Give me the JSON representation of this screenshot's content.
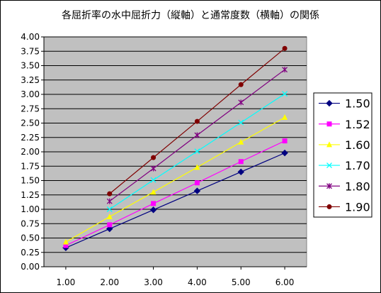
{
  "chart_data": {
    "type": "line",
    "title": "各屈折率の水中屈折力（縦軸）と通常度数（横軸）の関係",
    "xlabel": "",
    "ylabel": "",
    "xlim": [
      1.0,
      6.0
    ],
    "ylim": [
      0.0,
      4.0
    ],
    "x_ticks": [
      "1.00",
      "2.00",
      "3.00",
      "4.00",
      "5.00",
      "6.00"
    ],
    "y_ticks": [
      "0.00",
      "0.25",
      "0.50",
      "0.75",
      "1.00",
      "1.25",
      "1.50",
      "1.75",
      "2.00",
      "2.25",
      "2.50",
      "2.75",
      "3.00",
      "3.25",
      "3.50",
      "3.75",
      "4.00"
    ],
    "grid": true,
    "plot_background": "#c0c0c0",
    "legend_position": "right",
    "series": [
      {
        "name": "1.50",
        "color": "#000080",
        "marker": "diamond",
        "x": [
          1,
          2,
          3,
          4,
          5,
          6
        ],
        "values": [
          0.33,
          0.66,
          0.99,
          1.32,
          1.65,
          1.98
        ]
      },
      {
        "name": "1.52",
        "color": "#ff00ff",
        "marker": "square",
        "x": [
          1,
          2,
          3,
          4,
          5,
          6
        ],
        "values": [
          0.37,
          0.73,
          1.1,
          1.46,
          1.83,
          2.19
        ]
      },
      {
        "name": "1.60",
        "color": "#ffff00",
        "marker": "triangle",
        "x": [
          1,
          2,
          3,
          4,
          5,
          6
        ],
        "values": [
          0.43,
          0.87,
          1.3,
          1.73,
          2.17,
          2.6
        ]
      },
      {
        "name": "1.70",
        "color": "#00ffff",
        "marker": "x",
        "x": [
          2,
          3,
          4,
          5,
          6
        ],
        "values": [
          1.0,
          1.51,
          2.01,
          2.51,
          3.01
        ]
      },
      {
        "name": "1.80",
        "color": "#800080",
        "marker": "star",
        "x": [
          2,
          3,
          4,
          5,
          6
        ],
        "values": [
          1.14,
          1.71,
          2.29,
          2.86,
          3.43
        ]
      },
      {
        "name": "1.90",
        "color": "#800000",
        "marker": "circle",
        "x": [
          2,
          3,
          4,
          5,
          6
        ],
        "values": [
          1.27,
          1.9,
          2.53,
          3.17,
          3.8
        ]
      }
    ]
  }
}
